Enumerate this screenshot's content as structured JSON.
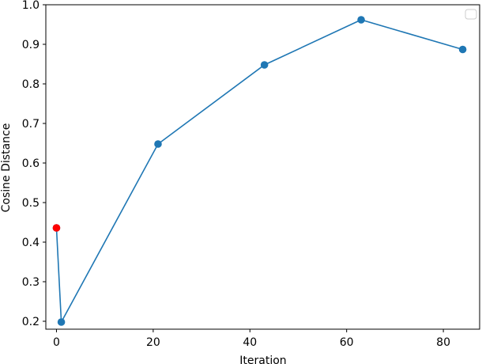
{
  "chart_data": {
    "type": "line",
    "xlabel": "Iteration",
    "ylabel": "Cosine Distance",
    "xlim": [
      -2.2,
      87.5
    ],
    "ylim": [
      0.18,
      1.0
    ],
    "xticks": [
      0,
      20,
      40,
      60,
      80
    ],
    "xtick_labels": [
      "0",
      "20",
      "40",
      "60",
      "80"
    ],
    "yticks": [
      0.2,
      0.3,
      0.4,
      0.5,
      0.6,
      0.7,
      0.8,
      0.9,
      1.0
    ],
    "ytick_labels": [
      "0.2",
      "0.3",
      "0.4",
      "0.5",
      "0.6",
      "0.7",
      "0.8",
      "0.9",
      "1.0"
    ],
    "grid": false,
    "legend": "top-right",
    "series": [
      {
        "color": "#1f77b4",
        "marker": "circle",
        "x": [
          0,
          1,
          21,
          43,
          63,
          84
        ],
        "y": [
          0.436,
          0.198,
          0.648,
          0.848,
          0.962,
          0.887
        ]
      }
    ],
    "highlight_point": {
      "x": 0,
      "y": 0.436,
      "color": "#ff0000"
    }
  }
}
